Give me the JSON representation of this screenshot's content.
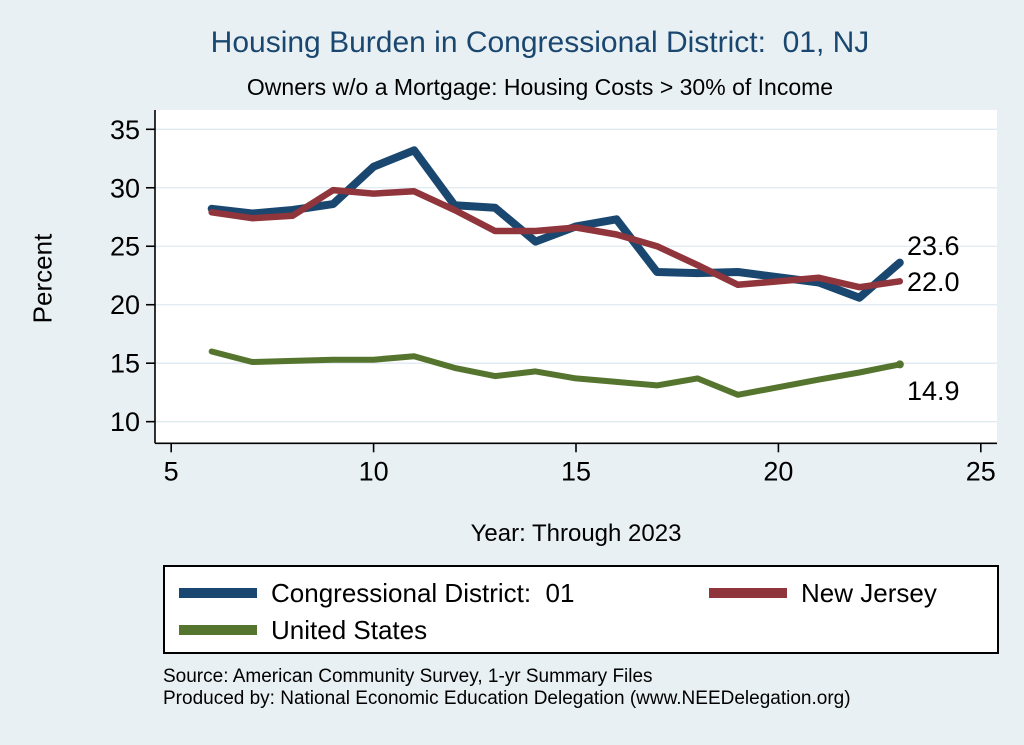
{
  "header": {
    "title": "Housing Burden in Congressional District:  01, NJ",
    "subtitle": "Owners w/o a Mortgage: Housing Costs > 30% of Income"
  },
  "axes": {
    "y_label": "Percent",
    "x_label": "Year: Through 2023"
  },
  "footer": {
    "source": "Source: American Community Survey, 1-yr Summary Files",
    "produced_by": "Produced by: National Economic Education Delegation (www.NEEDelegation.org)"
  },
  "colors": {
    "page_bg": "#e9f0f3",
    "plot_bg": "#ffffff",
    "grid": "#dfeaf0",
    "axis": "#000000",
    "title": "#1a476f"
  },
  "chart_data": {
    "type": "line",
    "title": "Housing Burden in Congressional District:  01, NJ",
    "subtitle": "Owners w/o a Mortgage: Housing Costs > 30% of Income",
    "xlabel": "Year: Through 2023",
    "ylabel": "Percent",
    "x_note": "x axis is year (two-digit), data 2006-2023, 2020 missing",
    "x": [
      6,
      7,
      8,
      9,
      10,
      11,
      12,
      13,
      14,
      15,
      16,
      17,
      18,
      19,
      21,
      22,
      23
    ],
    "x_ticks": [
      5,
      10,
      15,
      20,
      25
    ],
    "y_ticks": [
      10,
      15,
      20,
      25,
      30,
      35
    ],
    "xlim": [
      4.6,
      25.4
    ],
    "ylim": [
      8.15,
      36.65
    ],
    "grid": "horizontal",
    "legend_position": "bottom",
    "series": [
      {
        "name": "Congressional District:  01",
        "color": "#1a476f",
        "width": 8,
        "values": [
          28.2,
          27.8,
          28.1,
          28.6,
          31.8,
          33.2,
          28.5,
          28.3,
          25.4,
          26.7,
          27.3,
          22.8,
          22.7,
          22.8,
          21.9,
          20.6,
          23.6
        ],
        "end_label": "23.6",
        "end_label_dy": -17,
        "end_marker": false
      },
      {
        "name": "New Jersey",
        "color": "#90353b",
        "width": 6.5,
        "values": [
          27.9,
          27.4,
          27.6,
          29.8,
          29.5,
          29.7,
          28.1,
          26.3,
          26.3,
          26.6,
          26.0,
          25.0,
          23.4,
          21.7,
          22.3,
          21.5,
          22.0
        ],
        "end_label": "22.0",
        "end_label_dy": 0,
        "end_marker": false
      },
      {
        "name": "United States",
        "color": "#55752f",
        "width": 6,
        "values": [
          16.0,
          15.1,
          15.2,
          15.3,
          15.3,
          15.6,
          14.6,
          13.9,
          14.3,
          13.7,
          13.4,
          13.1,
          13.7,
          12.3,
          13.6,
          14.2,
          14.9
        ],
        "end_label": "14.9",
        "end_label_dy": 26,
        "end_marker": true
      }
    ]
  }
}
